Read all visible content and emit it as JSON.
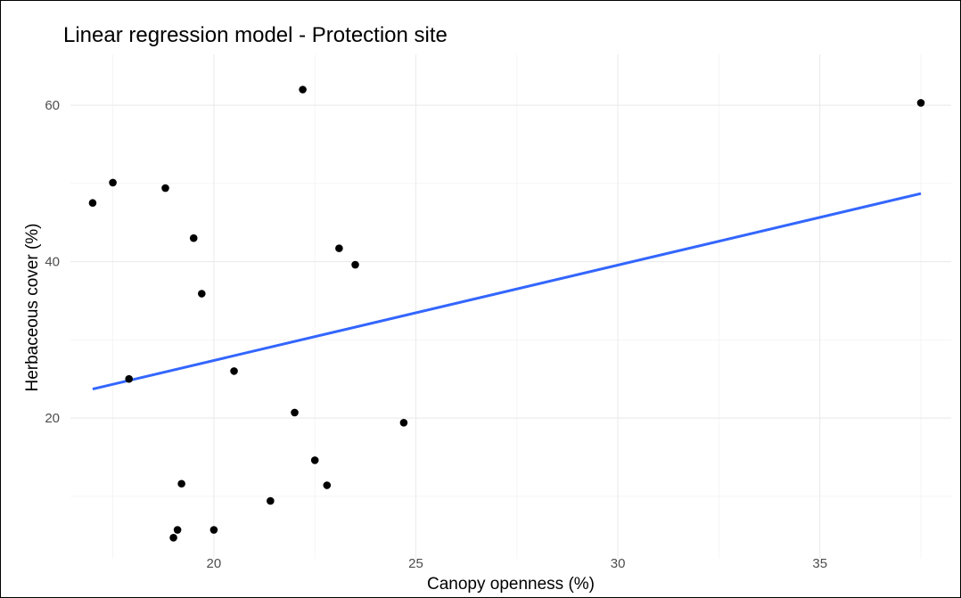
{
  "chart_data": {
    "type": "scatter",
    "title": "Linear regression model - Protection site",
    "xlabel": "Canopy openness (%)",
    "ylabel": "Herbaceous cover (%)",
    "xlim": [
      16.45,
      38.25
    ],
    "ylim": [
      2.0,
      66.5
    ],
    "x_ticks": [
      20,
      25,
      30,
      35
    ],
    "y_ticks": [
      20,
      40,
      60
    ],
    "grid": true,
    "legend": "none",
    "point_color": "#000000",
    "points": [
      {
        "x": 17.0,
        "y": 47.5
      },
      {
        "x": 17.5,
        "y": 50.1
      },
      {
        "x": 17.9,
        "y": 25.0
      },
      {
        "x": 18.8,
        "y": 49.4
      },
      {
        "x": 19.0,
        "y": 4.7
      },
      {
        "x": 19.1,
        "y": 5.7
      },
      {
        "x": 19.2,
        "y": 11.6
      },
      {
        "x": 19.5,
        "y": 43.0
      },
      {
        "x": 19.7,
        "y": 35.9
      },
      {
        "x": 20.0,
        "y": 5.7
      },
      {
        "x": 20.5,
        "y": 26.0
      },
      {
        "x": 21.4,
        "y": 9.4
      },
      {
        "x": 22.0,
        "y": 20.7
      },
      {
        "x": 22.2,
        "y": 62.0
      },
      {
        "x": 22.5,
        "y": 14.6
      },
      {
        "x": 22.8,
        "y": 11.4
      },
      {
        "x": 23.1,
        "y": 41.7
      },
      {
        "x": 23.5,
        "y": 39.6
      },
      {
        "x": 24.7,
        "y": 19.4
      },
      {
        "x": 37.5,
        "y": 60.3
      }
    ],
    "fit_line": {
      "type": "linear",
      "color": "#3366ff",
      "x": [
        17.0,
        37.5
      ],
      "y": [
        23.7,
        48.7
      ]
    }
  }
}
